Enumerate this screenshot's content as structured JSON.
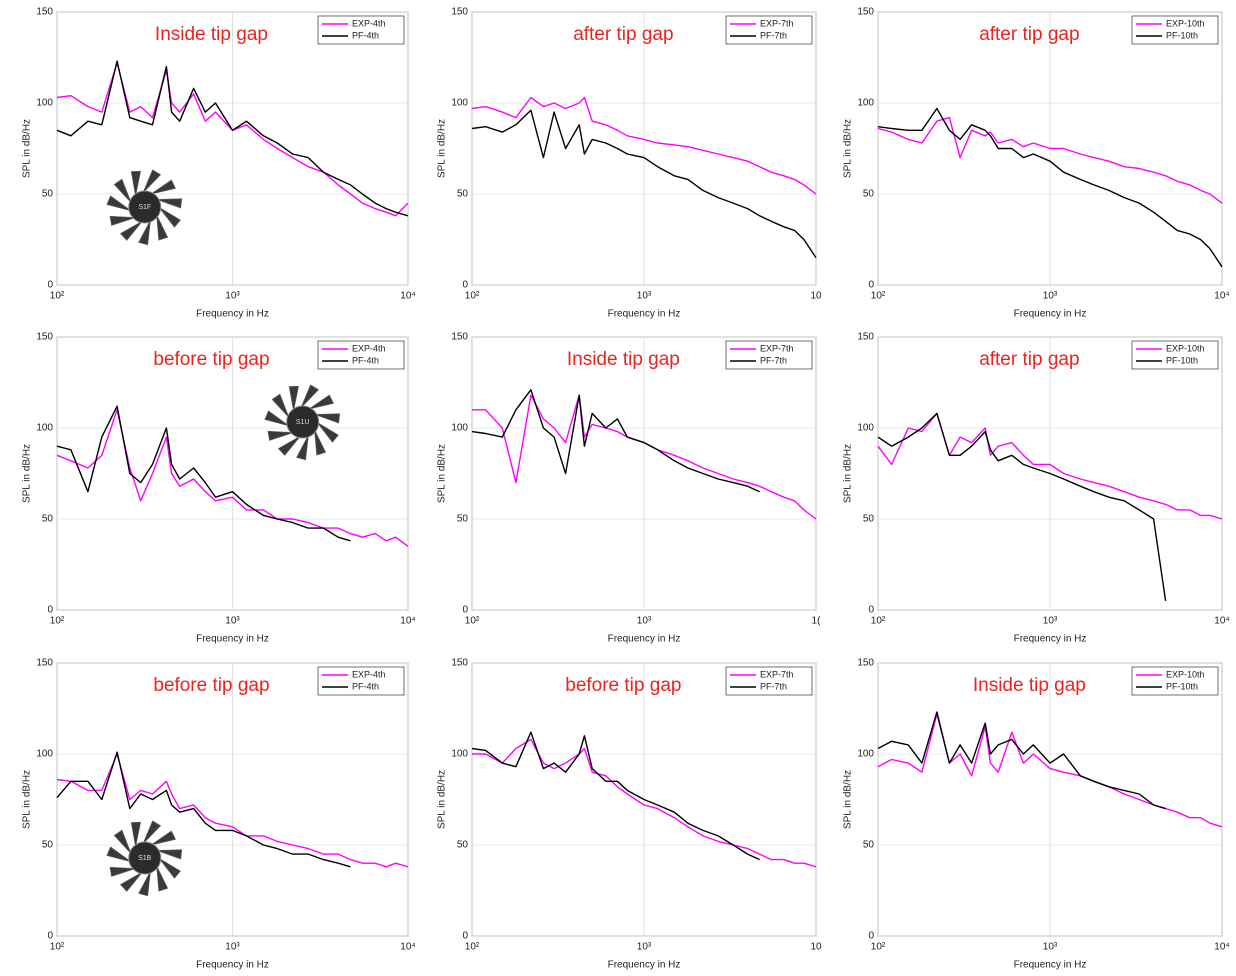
{
  "chart_data": [
    {
      "type": "line",
      "title": "Inside tip gap",
      "badge": "S1F",
      "xlabel": "Frequency in Hz",
      "ylabel": "SPL in dB/Hz",
      "log_x": true,
      "grid": true,
      "legend": "upper right",
      "xlim": [
        100,
        10000
      ],
      "xticks": [
        {
          "value": 100,
          "label": "10²"
        },
        {
          "value": 1000,
          "label": "10³"
        },
        {
          "value": 10000,
          "label": "10⁴"
        }
      ],
      "ylim": [
        0,
        150
      ],
      "yticks": [
        0,
        50,
        100,
        150
      ],
      "x": [
        100,
        120,
        150,
        180,
        220,
        260,
        300,
        350,
        420,
        450,
        500,
        600,
        700,
        800,
        1000,
        1200,
        1500,
        1800,
        2200,
        2700,
        3300,
        4000,
        4700,
        5500,
        6500,
        7500,
        8500,
        10000
      ],
      "series": [
        {
          "name": "EXP-4th",
          "color": "#ff00ff",
          "values": [
            103,
            104,
            98,
            95,
            122,
            95,
            98,
            92,
            118,
            100,
            95,
            105,
            90,
            95,
            85,
            88,
            80,
            75,
            70,
            65,
            62,
            55,
            50,
            45,
            42,
            40,
            38,
            45
          ]
        },
        {
          "name": "PF-4th",
          "color": "#000000",
          "values": [
            85,
            82,
            90,
            88,
            123,
            92,
            90,
            88,
            120,
            95,
            90,
            108,
            95,
            100,
            85,
            90,
            82,
            78,
            72,
            70,
            62,
            58,
            55,
            50,
            45,
            42,
            40,
            38
          ]
        }
      ]
    },
    {
      "type": "line",
      "title": "after tip gap",
      "xlabel": "Frequency in Hz",
      "ylabel": "SPL in dB/Hz",
      "log_x": true,
      "grid": true,
      "legend": "upper right",
      "xlim": [
        100,
        10000
      ],
      "xticks": [
        {
          "value": 100,
          "label": "10²"
        },
        {
          "value": 1000,
          "label": "10³"
        },
        {
          "value": 10000,
          "label": "10"
        }
      ],
      "ylim": [
        0,
        150
      ],
      "yticks": [
        0,
        50,
        100,
        150
      ],
      "x": [
        100,
        120,
        150,
        180,
        220,
        260,
        300,
        350,
        420,
        450,
        500,
        600,
        700,
        800,
        1000,
        1200,
        1500,
        1800,
        2200,
        2700,
        3300,
        4000,
        4700,
        5500,
        6500,
        7500,
        8500,
        10000
      ],
      "series": [
        {
          "name": "EXP-7th",
          "color": "#ff00ff",
          "values": [
            97,
            98,
            95,
            92,
            103,
            98,
            100,
            97,
            100,
            103,
            90,
            88,
            85,
            82,
            80,
            78,
            77,
            76,
            74,
            72,
            70,
            68,
            65,
            62,
            60,
            58,
            55,
            50
          ]
        },
        {
          "name": "PF-7th",
          "color": "#000000",
          "values": [
            86,
            87,
            84,
            88,
            96,
            70,
            95,
            75,
            88,
            72,
            80,
            78,
            75,
            72,
            70,
            65,
            60,
            58,
            52,
            48,
            45,
            42,
            38,
            35,
            32,
            30,
            25,
            15
          ]
        }
      ]
    },
    {
      "type": "line",
      "title": "after tip gap",
      "xlabel": "Frequency in Hz",
      "ylabel": "SPL in dB/Hz",
      "log_x": true,
      "grid": true,
      "legend": "upper right",
      "xlim": [
        100,
        10000
      ],
      "xticks": [
        {
          "value": 100,
          "label": "10²"
        },
        {
          "value": 1000,
          "label": "10³"
        },
        {
          "value": 10000,
          "label": "10⁴"
        }
      ],
      "ylim": [
        0,
        150
      ],
      "yticks": [
        0,
        50,
        100,
        150
      ],
      "x": [
        100,
        120,
        150,
        180,
        220,
        260,
        300,
        350,
        420,
        450,
        500,
        600,
        700,
        800,
        1000,
        1200,
        1500,
        1800,
        2200,
        2700,
        3300,
        4000,
        4700,
        5500,
        6500,
        7500,
        8500,
        10000
      ],
      "series": [
        {
          "name": "EXP-10th",
          "color": "#ff00ff",
          "values": [
            86,
            84,
            80,
            78,
            90,
            92,
            70,
            85,
            82,
            84,
            78,
            80,
            76,
            78,
            75,
            75,
            72,
            70,
            68,
            65,
            64,
            62,
            60,
            57,
            55,
            52,
            50,
            45
          ]
        },
        {
          "name": "PF-10th",
          "color": "#000000",
          "values": [
            87,
            86,
            85,
            85,
            97,
            85,
            80,
            88,
            85,
            82,
            75,
            75,
            70,
            72,
            68,
            62,
            58,
            55,
            52,
            48,
            45,
            40,
            35,
            30,
            28,
            25,
            20,
            10
          ]
        }
      ]
    },
    {
      "type": "line",
      "title": "before tip gap",
      "badge": "S1U",
      "xlabel": "Frequency in Hz",
      "ylabel": "SPL in dB/Hz",
      "log_x": true,
      "grid": true,
      "legend": "upper right",
      "xlim": [
        100,
        10000
      ],
      "xticks": [
        {
          "value": 100,
          "label": "10²"
        },
        {
          "value": 1000,
          "label": "10³"
        },
        {
          "value": 10000,
          "label": "10⁴"
        }
      ],
      "ylim": [
        0,
        150
      ],
      "yticks": [
        0,
        50,
        100,
        150
      ],
      "x": [
        100,
        120,
        150,
        180,
        220,
        260,
        300,
        350,
        420,
        450,
        500,
        600,
        700,
        800,
        1000,
        1200,
        1500,
        1800,
        2200,
        2700,
        3300,
        4000,
        4700,
        5500,
        6500,
        7500,
        8500,
        10000
      ],
      "series": [
        {
          "name": "EXP-4th",
          "color": "#ff00ff",
          "values": [
            85,
            82,
            78,
            85,
            110,
            78,
            60,
            75,
            95,
            75,
            68,
            72,
            65,
            60,
            62,
            55,
            55,
            50,
            50,
            48,
            45,
            45,
            42,
            40,
            42,
            38,
            40,
            35
          ]
        },
        {
          "name": "PF-4th",
          "color": "#000000",
          "values": [
            90,
            88,
            65,
            95,
            112,
            75,
            70,
            80,
            100,
            80,
            72,
            78,
            70,
            62,
            65,
            58,
            52,
            50,
            48,
            45,
            45,
            40,
            38,
            null,
            null,
            null,
            null,
            null
          ]
        }
      ]
    },
    {
      "type": "line",
      "title": "Inside tip gap",
      "xlabel": "Frequency in Hz",
      "ylabel": "SPL in dB/Hz",
      "log_x": true,
      "grid": true,
      "legend": "upper right",
      "xlim": [
        100,
        10000
      ],
      "xticks": [
        {
          "value": 100,
          "label": "10²"
        },
        {
          "value": 1000,
          "label": "10³"
        },
        {
          "value": 10000,
          "label": "1("
        }
      ],
      "ylim": [
        0,
        150
      ],
      "yticks": [
        0,
        50,
        100,
        150
      ],
      "x": [
        100,
        120,
        150,
        180,
        220,
        260,
        300,
        350,
        420,
        450,
        500,
        600,
        700,
        800,
        1000,
        1200,
        1500,
        1800,
        2200,
        2700,
        3300,
        4000,
        4700,
        5500,
        6500,
        7500,
        8500,
        10000
      ],
      "series": [
        {
          "name": "EXP-7th",
          "color": "#ff00ff",
          "values": [
            110,
            110,
            100,
            70,
            118,
            105,
            100,
            92,
            118,
            95,
            102,
            100,
            98,
            95,
            92,
            88,
            85,
            82,
            78,
            75,
            72,
            70,
            68,
            65,
            62,
            60,
            55,
            50
          ]
        },
        {
          "name": "PF-7th",
          "color": "#000000",
          "values": [
            98,
            97,
            95,
            110,
            121,
            100,
            95,
            75,
            118,
            90,
            108,
            100,
            105,
            95,
            92,
            88,
            82,
            78,
            75,
            72,
            70,
            68,
            65,
            null,
            null,
            null,
            null,
            null
          ]
        }
      ]
    },
    {
      "type": "line",
      "title": "after tip gap",
      "xlabel": "Frequency in Hz",
      "ylabel": "SPL in dB/Hz",
      "log_x": true,
      "grid": true,
      "legend": "upper right",
      "xlim": [
        100,
        10000
      ],
      "xticks": [
        {
          "value": 100,
          "label": "10²"
        },
        {
          "value": 1000,
          "label": "10³"
        },
        {
          "value": 10000,
          "label": "10⁴"
        }
      ],
      "ylim": [
        0,
        150
      ],
      "yticks": [
        0,
        50,
        100,
        150
      ],
      "x": [
        100,
        120,
        150,
        180,
        220,
        260,
        300,
        350,
        420,
        450,
        500,
        600,
        700,
        800,
        1000,
        1200,
        1500,
        1800,
        2200,
        2700,
        3300,
        4000,
        4700,
        5500,
        6500,
        7500,
        8500,
        10000
      ],
      "series": [
        {
          "name": "EXP-10th",
          "color": "#ff00ff",
          "values": [
            90,
            80,
            100,
            98,
            108,
            85,
            95,
            92,
            100,
            85,
            90,
            92,
            85,
            80,
            80,
            75,
            72,
            70,
            68,
            65,
            62,
            60,
            58,
            55,
            55,
            52,
            52,
            50
          ]
        },
        {
          "name": "PF-10th",
          "color": "#000000",
          "values": [
            95,
            90,
            95,
            100,
            108,
            85,
            85,
            90,
            98,
            88,
            82,
            85,
            80,
            78,
            75,
            72,
            68,
            65,
            62,
            60,
            55,
            50,
            5,
            null,
            null,
            null,
            null,
            null
          ]
        }
      ]
    },
    {
      "type": "line",
      "title": "before tip gap",
      "badge": "S1B",
      "xlabel": "Frequency in Hz",
      "ylabel": "SPL in dB/Hz",
      "log_x": true,
      "grid": true,
      "legend": "upper right",
      "xlim": [
        100,
        10000
      ],
      "xticks": [
        {
          "value": 100,
          "label": "10²"
        },
        {
          "value": 1000,
          "label": "10³"
        },
        {
          "value": 10000,
          "label": "10⁴"
        }
      ],
      "ylim": [
        0,
        150
      ],
      "yticks": [
        0,
        50,
        100,
        150
      ],
      "x": [
        100,
        120,
        150,
        180,
        220,
        260,
        300,
        350,
        420,
        450,
        500,
        600,
        700,
        800,
        1000,
        1200,
        1500,
        1800,
        2200,
        2700,
        3300,
        4000,
        4700,
        5500,
        6500,
        7500,
        8500,
        10000
      ],
      "series": [
        {
          "name": "EXP-4th",
          "color": "#ff00ff",
          "values": [
            86,
            85,
            80,
            80,
            100,
            75,
            80,
            78,
            85,
            78,
            70,
            72,
            65,
            62,
            60,
            55,
            55,
            52,
            50,
            48,
            45,
            45,
            42,
            40,
            40,
            38,
            40,
            38
          ]
        },
        {
          "name": "PF-4th",
          "color": "#000000",
          "values": [
            76,
            85,
            85,
            75,
            101,
            70,
            78,
            75,
            80,
            72,
            68,
            70,
            62,
            58,
            58,
            55,
            50,
            48,
            45,
            45,
            42,
            40,
            38,
            null,
            null,
            null,
            null,
            null
          ]
        }
      ]
    },
    {
      "type": "line",
      "title": "before tip gap",
      "xlabel": "Frequency in Hz",
      "ylabel": "SPL in dB/Hz",
      "log_x": true,
      "grid": true,
      "legend": "upper right",
      "xlim": [
        100,
        10000
      ],
      "xticks": [
        {
          "value": 100,
          "label": "10²"
        },
        {
          "value": 1000,
          "label": "10³"
        },
        {
          "value": 10000,
          "label": "10"
        }
      ],
      "ylim": [
        0,
        150
      ],
      "yticks": [
        0,
        50,
        100,
        150
      ],
      "x": [
        100,
        120,
        150,
        180,
        220,
        260,
        300,
        350,
        420,
        450,
        500,
        600,
        700,
        800,
        1000,
        1200,
        1500,
        1800,
        2200,
        2700,
        3300,
        4000,
        4700,
        5500,
        6500,
        7500,
        8500,
        10000
      ],
      "series": [
        {
          "name": "EXP-7th",
          "color": "#ff00ff",
          "values": [
            100,
            100,
            95,
            103,
            108,
            95,
            92,
            95,
            100,
            103,
            90,
            88,
            82,
            78,
            72,
            70,
            65,
            60,
            55,
            52,
            50,
            48,
            45,
            42,
            42,
            40,
            40,
            38
          ]
        },
        {
          "name": "PF-7th",
          "color": "#000000",
          "values": [
            103,
            102,
            95,
            93,
            112,
            92,
            95,
            90,
            100,
            110,
            92,
            85,
            85,
            80,
            75,
            72,
            68,
            62,
            58,
            55,
            50,
            45,
            42,
            null,
            null,
            null,
            null,
            null
          ]
        }
      ]
    },
    {
      "type": "line",
      "title": "Inside tip gap",
      "xlabel": "Frequency in Hz",
      "ylabel": "SPL in dB/Hz",
      "log_x": true,
      "grid": true,
      "legend": "upper right",
      "xlim": [
        100,
        10000
      ],
      "xticks": [
        {
          "value": 100,
          "label": "10²"
        },
        {
          "value": 1000,
          "label": "10³"
        },
        {
          "value": 10000,
          "label": "10⁴"
        }
      ],
      "ylim": [
        0,
        150
      ],
      "yticks": [
        0,
        50,
        100,
        150
      ],
      "x": [
        100,
        120,
        150,
        180,
        220,
        260,
        300,
        350,
        420,
        450,
        500,
        600,
        700,
        800,
        1000,
        1200,
        1500,
        1800,
        2200,
        2700,
        3300,
        4000,
        4700,
        5500,
        6500,
        7500,
        8500,
        10000
      ],
      "series": [
        {
          "name": "EXP-10th",
          "color": "#ff00ff",
          "values": [
            93,
            97,
            95,
            90,
            122,
            95,
            100,
            88,
            115,
            95,
            90,
            112,
            95,
            100,
            92,
            90,
            88,
            85,
            82,
            78,
            75,
            72,
            70,
            68,
            65,
            65,
            62,
            60
          ]
        },
        {
          "name": "PF-10th",
          "color": "#000000",
          "values": [
            103,
            107,
            105,
            95,
            123,
            95,
            105,
            95,
            117,
            100,
            105,
            108,
            100,
            105,
            95,
            100,
            88,
            85,
            82,
            80,
            78,
            72,
            70,
            null,
            null,
            null,
            null,
            null
          ]
        }
      ]
    }
  ]
}
